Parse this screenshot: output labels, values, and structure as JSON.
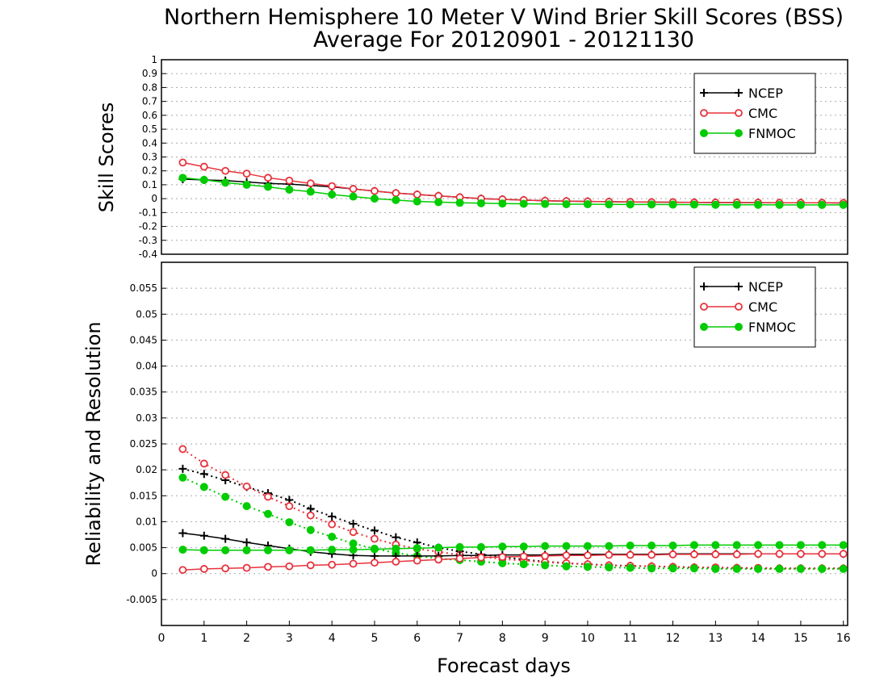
{
  "chart_data": [
    {
      "type": "line",
      "title": "Northern Hemisphere 10 Meter V Wind Brier Skill Scores (BSS)",
      "subtitle": "Average For 20120901 - 20121130",
      "xlabel": "",
      "ylabel": "Skill Scores",
      "ylim": [
        -0.4,
        1
      ],
      "yticks": [
        "-0.4",
        "-0.3",
        "-0.2",
        "-0.1",
        "0",
        "0.1",
        "0.2",
        "0.3",
        "0.4",
        "0.5",
        "0.6",
        "0.7",
        "0.8",
        "0.9",
        "1"
      ],
      "xlim": [
        0,
        16.1
      ],
      "grid": true,
      "legend_position": "top-right",
      "x": [
        0.5,
        1,
        1.5,
        2,
        2.5,
        3,
        3.5,
        4,
        4.5,
        5,
        5.5,
        6,
        6.5,
        7,
        7.5,
        8,
        8.5,
        9,
        9.5,
        10,
        10.5,
        11,
        11.5,
        12,
        12.5,
        13,
        13.5,
        14,
        14.5,
        15,
        15.5,
        16
      ],
      "series": [
        {
          "name": "NCEP",
          "color": "#000000",
          "marker": "plus",
          "line": "solid",
          "values": [
            0.14,
            0.135,
            0.13,
            0.12,
            0.11,
            0.105,
            0.095,
            0.085,
            0.07,
            0.055,
            0.04,
            0.03,
            0.02,
            0.01,
            0.0,
            -0.005,
            -0.01,
            -0.015,
            -0.018,
            -0.02,
            -0.022,
            -0.024,
            -0.025,
            -0.026,
            -0.027,
            -0.028,
            -0.028,
            -0.029,
            -0.03,
            -0.03,
            -0.03,
            -0.031
          ]
        },
        {
          "name": "CMC",
          "color": "#e8323c",
          "marker": "open-circle",
          "line": "solid",
          "values": [
            0.26,
            0.23,
            0.2,
            0.18,
            0.15,
            0.13,
            0.11,
            0.09,
            0.07,
            0.055,
            0.04,
            0.03,
            0.02,
            0.01,
            0.0,
            -0.005,
            -0.01,
            -0.015,
            -0.018,
            -0.02,
            -0.022,
            -0.024,
            -0.025,
            -0.026,
            -0.027,
            -0.028,
            -0.028,
            -0.029,
            -0.03,
            -0.03,
            -0.03,
            -0.031
          ]
        },
        {
          "name": "FNMOC",
          "color": "#00cc00",
          "marker": "filled-circle",
          "line": "solid",
          "values": [
            0.15,
            0.135,
            0.115,
            0.1,
            0.085,
            0.065,
            0.05,
            0.03,
            0.015,
            0.0,
            -0.01,
            -0.02,
            -0.025,
            -0.03,
            -0.033,
            -0.035,
            -0.037,
            -0.038,
            -0.04,
            -0.04,
            -0.041,
            -0.042,
            -0.042,
            -0.043,
            -0.043,
            -0.044,
            -0.044,
            -0.044,
            -0.045,
            -0.045,
            -0.045,
            -0.045
          ]
        }
      ]
    },
    {
      "type": "line",
      "xlabel": "Forecast days",
      "ylabel": "Reliability and Resolution",
      "ylim": [
        -0.01,
        0.06
      ],
      "yticks": [
        "-0.005",
        "0",
        "0.005",
        "0.01",
        "0.015",
        "0.02",
        "0.025",
        "0.03",
        "0.035",
        "0.04",
        "0.045",
        "0.05",
        "0.055"
      ],
      "xlim": [
        0,
        16.1
      ],
      "xticks": [
        "0",
        "1",
        "2",
        "3",
        "4",
        "5",
        "6",
        "7",
        "8",
        "9",
        "10",
        "11",
        "12",
        "13",
        "14",
        "15",
        "16"
      ],
      "grid": true,
      "legend_position": "top-right",
      "legend": [
        {
          "name": "NCEP",
          "color": "#000000",
          "marker": "plus"
        },
        {
          "name": "CMC",
          "color": "#e8323c",
          "marker": "open-circle"
        },
        {
          "name": "FNMOC",
          "color": "#00cc00",
          "marker": "filled-circle"
        }
      ],
      "x": [
        0.5,
        1,
        1.5,
        2,
        2.5,
        3,
        3.5,
        4,
        4.5,
        5,
        5.5,
        6,
        6.5,
        7,
        7.5,
        8,
        8.5,
        9,
        9.5,
        10,
        10.5,
        11,
        11.5,
        12,
        12.5,
        13,
        13.5,
        14,
        14.5,
        15,
        15.5,
        16
      ],
      "series": [
        {
          "model": "NCEP",
          "line": "dotted",
          "color": "#000000",
          "marker": "plus",
          "values": [
            0.0202,
            0.0192,
            0.018,
            0.0167,
            0.0155,
            0.0142,
            0.0125,
            0.011,
            0.0096,
            0.0083,
            0.007,
            0.006,
            0.005,
            0.0043,
            0.0037,
            0.0032,
            0.0027,
            0.0023,
            0.002,
            0.0018,
            0.0016,
            0.0015,
            0.0014,
            0.0013,
            0.0012,
            0.0011,
            0.0011,
            0.001,
            0.001,
            0.001,
            0.001,
            0.001
          ]
        },
        {
          "model": "CMC",
          "line": "dotted",
          "color": "#e8323c",
          "marker": "open-circle",
          "values": [
            0.024,
            0.0212,
            0.019,
            0.0168,
            0.0148,
            0.013,
            0.0112,
            0.0095,
            0.008,
            0.0067,
            0.0056,
            0.0048,
            0.0042,
            0.0036,
            0.0032,
            0.0028,
            0.0025,
            0.0022,
            0.002,
            0.0018,
            0.0016,
            0.0015,
            0.0014,
            0.0013,
            0.0012,
            0.0012,
            0.0011,
            0.0011,
            0.001,
            0.001,
            0.001,
            0.001
          ]
        },
        {
          "model": "FNMOC",
          "line": "dotted",
          "color": "#00cc00",
          "marker": "filled-circle",
          "values": [
            0.0185,
            0.0167,
            0.0148,
            0.013,
            0.0115,
            0.0099,
            0.0084,
            0.0071,
            0.0058,
            0.0048,
            0.004,
            0.0034,
            0.0029,
            0.0026,
            0.0023,
            0.002,
            0.0018,
            0.0016,
            0.0014,
            0.0013,
            0.0012,
            0.0011,
            0.001,
            0.001,
            0.001,
            0.0009,
            0.0009,
            0.0009,
            0.0009,
            0.0009,
            0.0009,
            0.0009
          ]
        },
        {
          "model": "NCEP",
          "line": "solid",
          "color": "#000000",
          "marker": "plus",
          "values": [
            0.0078,
            0.0073,
            0.0067,
            0.006,
            0.0054,
            0.0048,
            0.0042,
            0.0038,
            0.0035,
            0.0034,
            0.0034,
            0.0034,
            0.0034,
            0.0035,
            0.0035,
            0.0036,
            0.0036,
            0.0036,
            0.0037,
            0.0037,
            0.0037,
            0.0037,
            0.0037,
            0.0038,
            0.0038,
            0.0038,
            0.0038,
            0.0038,
            0.0038,
            0.0038,
            0.0038,
            0.0038
          ]
        },
        {
          "model": "CMC",
          "line": "solid",
          "color": "#e8323c",
          "marker": "open-circle",
          "values": [
            0.0007,
            0.0009,
            0.001,
            0.0011,
            0.0013,
            0.0014,
            0.0016,
            0.0017,
            0.0019,
            0.0021,
            0.0023,
            0.0025,
            0.0027,
            0.0029,
            0.0031,
            0.0032,
            0.0033,
            0.0034,
            0.0035,
            0.0035,
            0.0036,
            0.0036,
            0.0036,
            0.0037,
            0.0037,
            0.0037,
            0.0037,
            0.0038,
            0.0038,
            0.0038,
            0.0038,
            0.0038
          ]
        },
        {
          "model": "FNMOC",
          "line": "solid",
          "color": "#00cc00",
          "marker": "filled-circle",
          "values": [
            0.0046,
            0.0045,
            0.0045,
            0.0045,
            0.0045,
            0.0045,
            0.0045,
            0.0046,
            0.0046,
            0.0047,
            0.0048,
            0.0049,
            0.005,
            0.0051,
            0.0051,
            0.0052,
            0.0052,
            0.0053,
            0.0053,
            0.0053,
            0.0053,
            0.0054,
            0.0054,
            0.0054,
            0.0055,
            0.0055,
            0.0055,
            0.0055,
            0.0055,
            0.0055,
            0.0055,
            0.0055
          ]
        }
      ]
    }
  ]
}
